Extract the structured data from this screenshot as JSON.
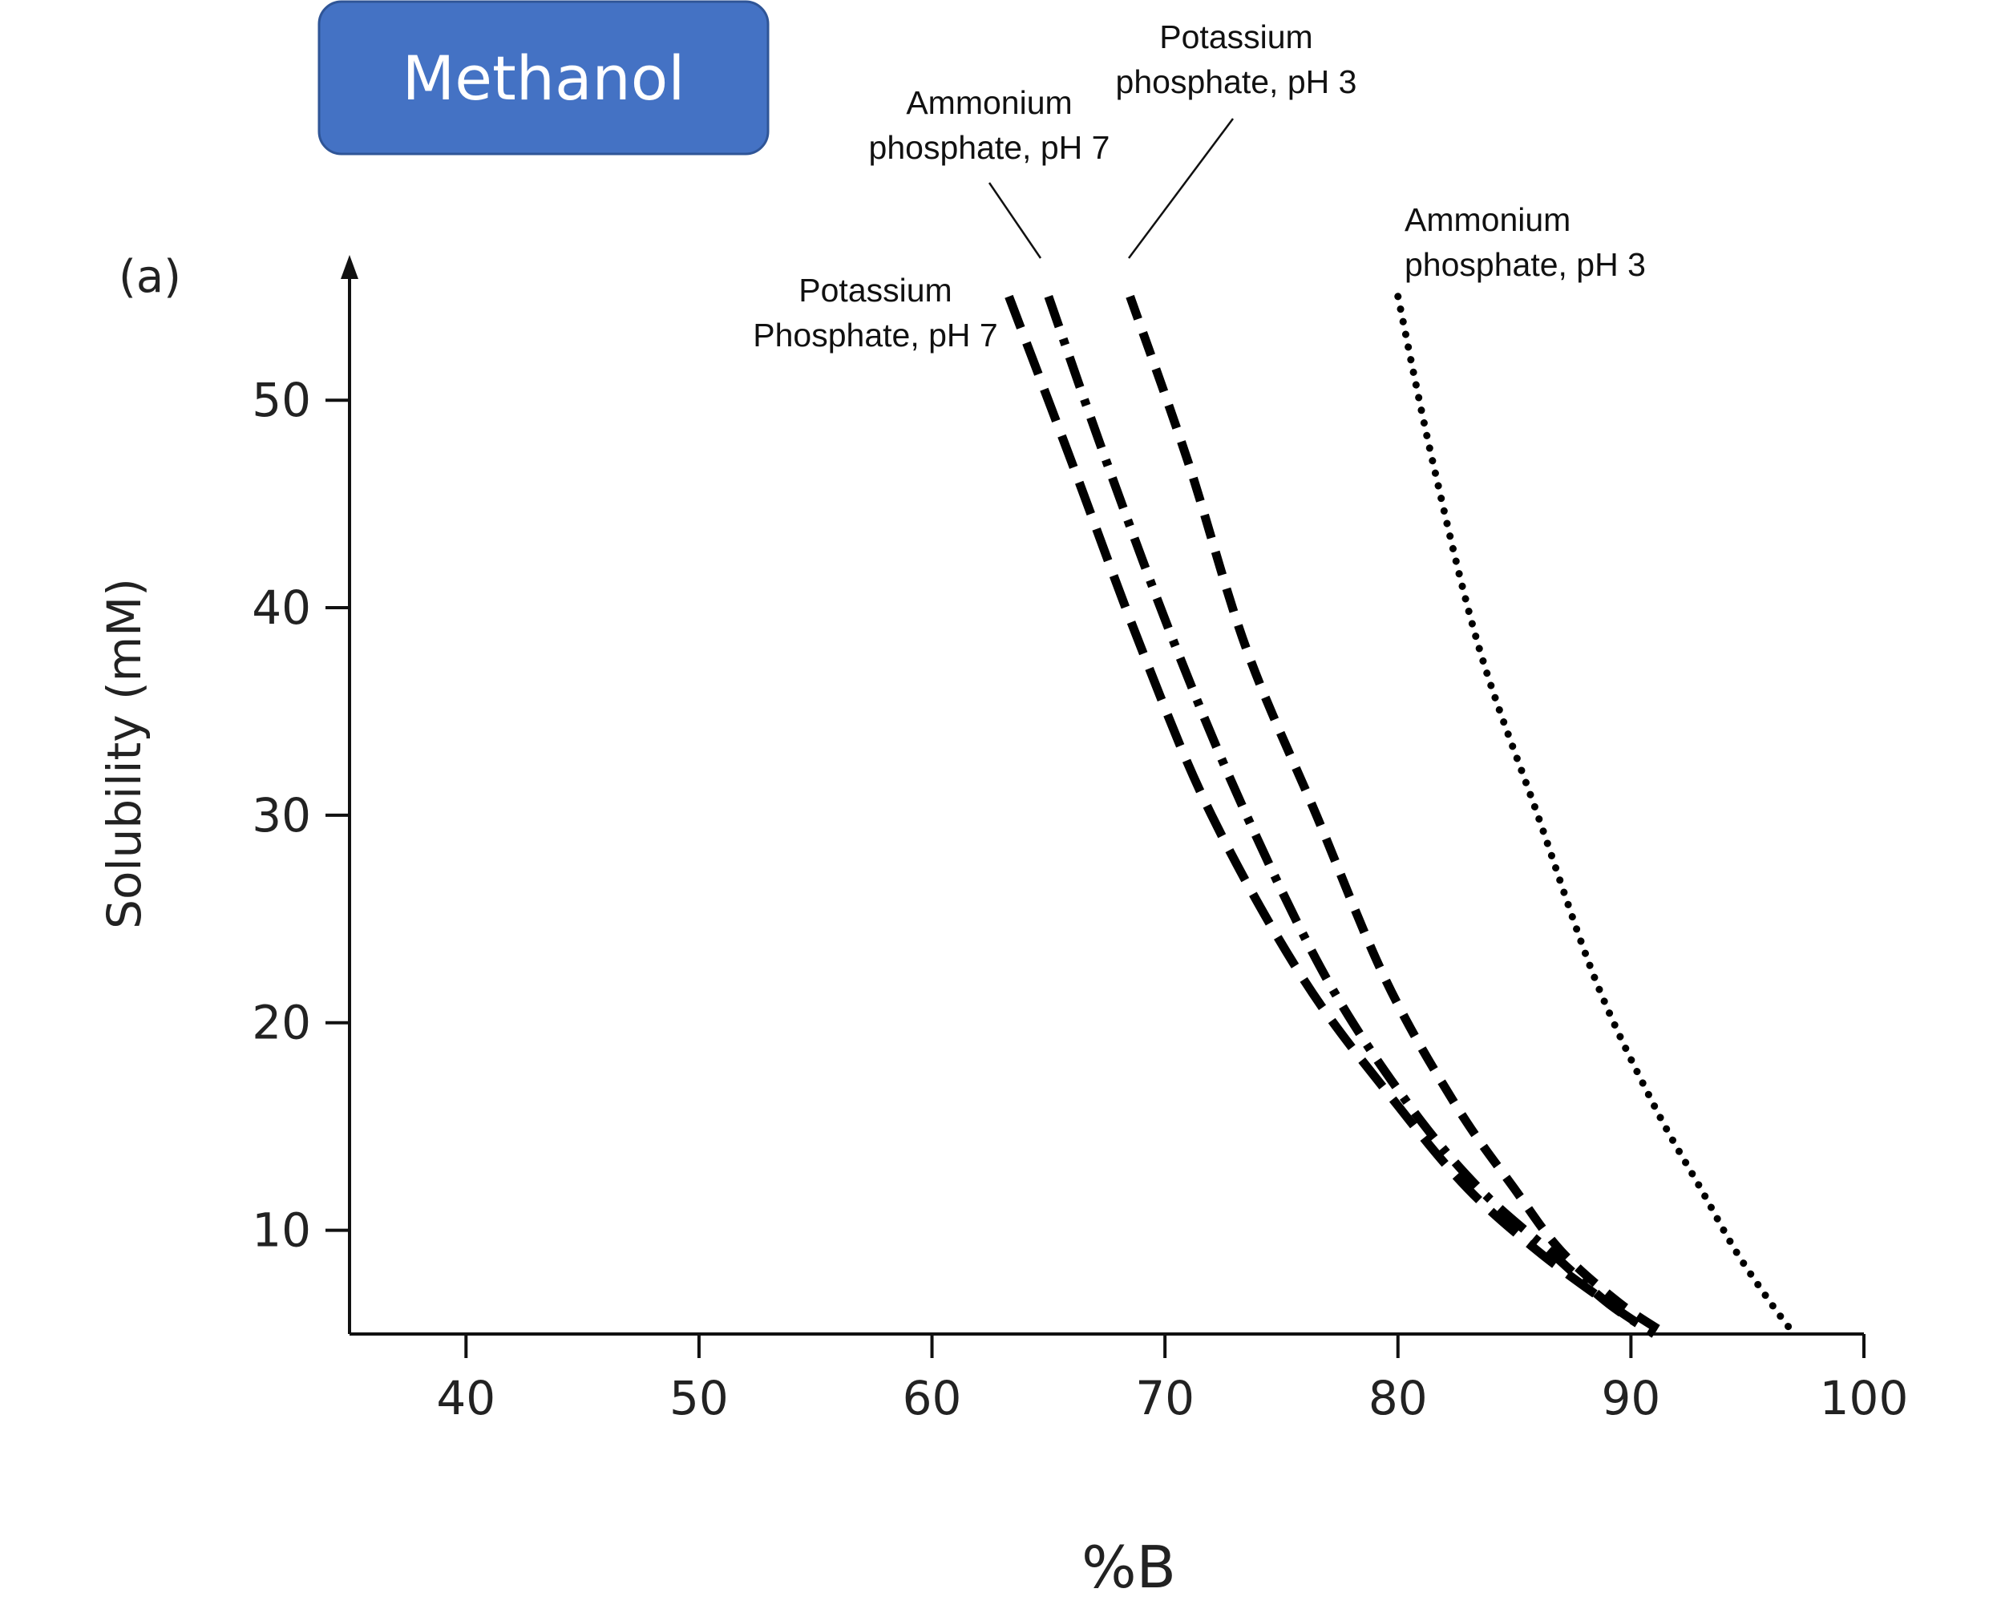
{
  "badge": {
    "label": "Methanol",
    "color": "#4472C4",
    "border_color": "#2F5597"
  },
  "chart_data": {
    "type": "line",
    "panel_label": "(a)",
    "title": "",
    "xlabel": "%B",
    "ylabel": "Solubility (mM)",
    "xlim": [
      35,
      100
    ],
    "ylim": [
      5,
      57
    ],
    "xticks": [
      40,
      50,
      60,
      70,
      80,
      90,
      100
    ],
    "yticks": [
      10,
      20,
      30,
      40,
      50
    ],
    "grid": false,
    "legend": "none",
    "series": [
      {
        "name": "Potassium Phosphate, pH 7",
        "style": "long-dash",
        "points": [
          [
            63.3,
            55
          ],
          [
            66,
            47
          ],
          [
            69,
            38
          ],
          [
            72,
            30
          ],
          [
            76,
            22
          ],
          [
            80,
            16
          ],
          [
            83,
            12
          ],
          [
            86,
            9
          ],
          [
            89,
            6.5
          ],
          [
            91,
            5
          ]
        ]
      },
      {
        "name": "Ammonium phosphate, pH 7",
        "style": "dash-dot",
        "points": [
          [
            65,
            55
          ],
          [
            67.5,
            47
          ],
          [
            70.5,
            38
          ],
          [
            73.5,
            30
          ],
          [
            77,
            22
          ],
          [
            80.5,
            16
          ],
          [
            83.5,
            12
          ],
          [
            86.5,
            9
          ],
          [
            89,
            6.5
          ],
          [
            91,
            5
          ]
        ]
      },
      {
        "name": "Potassium phosphate, pH 3",
        "style": "dash",
        "points": [
          [
            68.5,
            55
          ],
          [
            71,
            47
          ],
          [
            73.5,
            38
          ],
          [
            76.5,
            30
          ],
          [
            79.5,
            22
          ],
          [
            82.5,
            16
          ],
          [
            85,
            12
          ],
          [
            87,
            9
          ],
          [
            89.5,
            6.5
          ],
          [
            91.5,
            5
          ]
        ]
      },
      {
        "name": "Ammonium phosphate, pH 3",
        "style": "dot",
        "points": [
          [
            80,
            55
          ],
          [
            81.5,
            47
          ],
          [
            83.5,
            38
          ],
          [
            86,
            30
          ],
          [
            88.5,
            22
          ],
          [
            91,
            16
          ],
          [
            93,
            12
          ],
          [
            94.5,
            9
          ],
          [
            96,
            6.5
          ],
          [
            97,
            5
          ]
        ]
      }
    ],
    "annotations": [
      {
        "series": 0,
        "lines": [
          "Potassium",
          "Phosphate, pH 7"
        ]
      },
      {
        "series": 1,
        "lines": [
          "Ammonium",
          "phosphate, pH 7"
        ]
      },
      {
        "series": 2,
        "lines": [
          "Potassium",
          "phosphate, pH 3"
        ]
      },
      {
        "series": 3,
        "lines": [
          "Ammonium",
          "phosphate, pH 3"
        ]
      }
    ]
  }
}
